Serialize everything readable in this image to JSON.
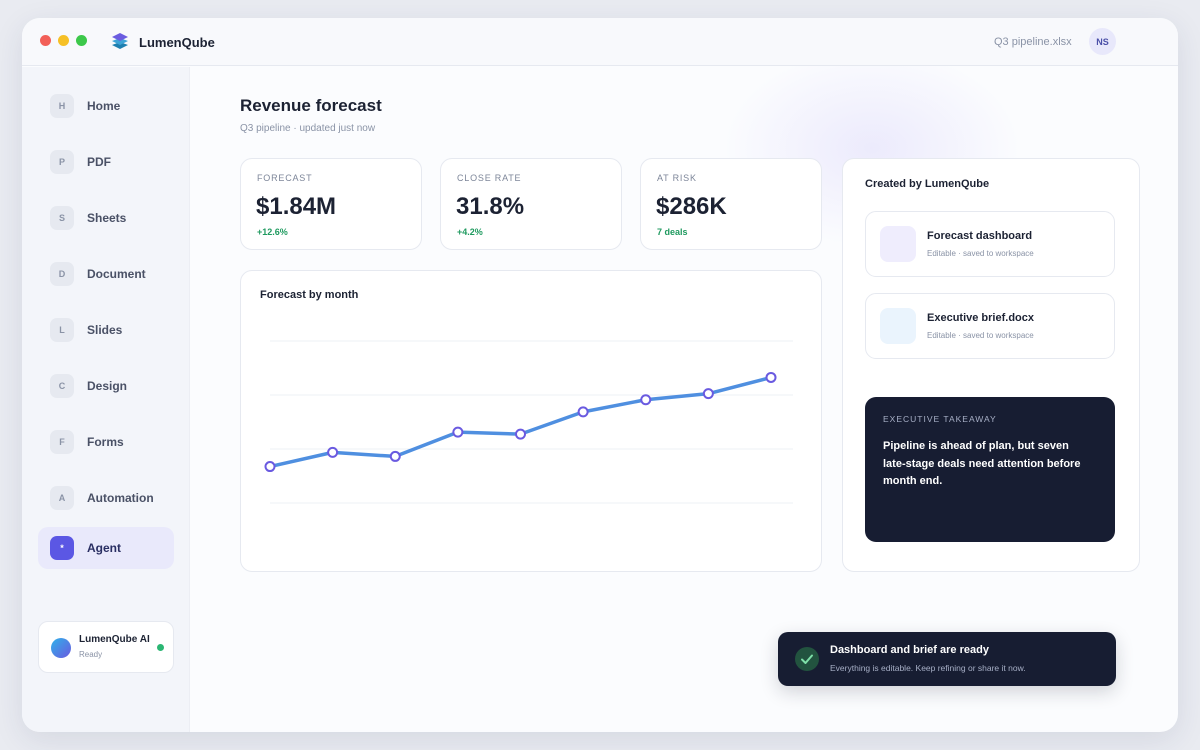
{
  "app": {
    "title": "LumenQube",
    "file_name": "Q3 pipeline.xlsx",
    "avatar_initials": "NS"
  },
  "sidebar": {
    "items": [
      {
        "badge": "H",
        "label": "Home"
      },
      {
        "badge": "P",
        "label": "PDF"
      },
      {
        "badge": "S",
        "label": "Sheets"
      },
      {
        "badge": "D",
        "label": "Document"
      },
      {
        "badge": "L",
        "label": "Slides"
      },
      {
        "badge": "C",
        "label": "Design"
      },
      {
        "badge": "F",
        "label": "Forms"
      },
      {
        "badge": "A",
        "label": "Automation"
      },
      {
        "badge": "*",
        "label": "Agent",
        "active": true
      }
    ],
    "assistant": {
      "name": "LumenQube AI",
      "status": "Ready"
    }
  },
  "main": {
    "title": "Revenue forecast",
    "subtitle": "Q3 pipeline · updated just now",
    "kpis": [
      {
        "label": "FORECAST",
        "value": "$1.84M",
        "delta": "+12.6%"
      },
      {
        "label": "CLOSE RATE",
        "value": "31.8%",
        "delta": "+4.2%"
      },
      {
        "label": "AT RISK",
        "value": "$286K",
        "delta": "7 deals"
      }
    ],
    "chart_title": "Forecast by month"
  },
  "chart_data": {
    "type": "line",
    "title": "Forecast by month",
    "values": [
      18,
      25,
      23,
      35,
      34,
      45,
      51,
      54,
      62
    ],
    "ylim": [
      0,
      80
    ],
    "grid": true,
    "line_color": "#4f8fe0",
    "marker_color": "#6a5ae0"
  },
  "panel": {
    "title": "Created by LumenQube",
    "files": [
      {
        "title": "Forecast dashboard",
        "meta": "Editable · saved to workspace",
        "thumb_color": "#efedfd"
      },
      {
        "title": "Executive brief.docx",
        "meta": "Editable · saved to workspace",
        "thumb_color": "#eaf4fd"
      }
    ],
    "takeaway": {
      "label": "EXECUTIVE TAKEAWAY",
      "text": "Pipeline is ahead of plan, but seven late-stage deals need attention before month end."
    }
  },
  "toast": {
    "title": "Dashboard and brief are ready",
    "subtitle": "Everything is editable. Keep refining or share it now.",
    "icon": "check-icon"
  },
  "colors": {
    "accent": "#5b57e4",
    "positive": "#1f9a5f",
    "dark": "#171d32"
  }
}
